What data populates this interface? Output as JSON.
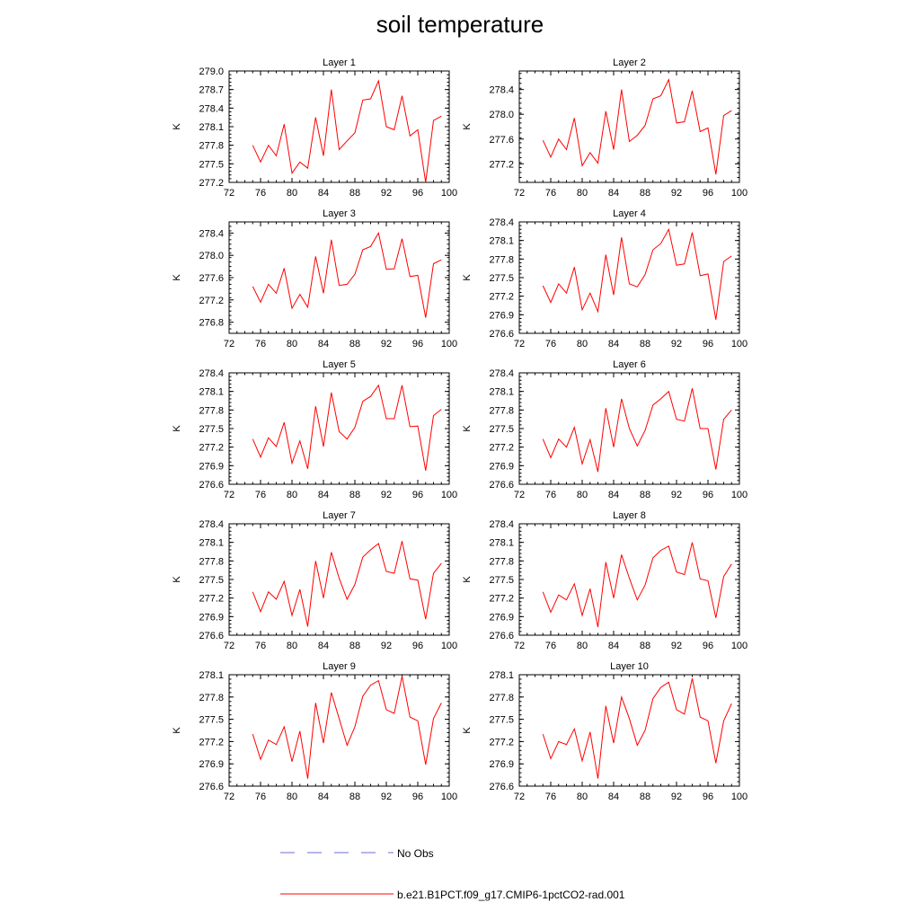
{
  "title": "soil temperature",
  "legend": [
    {
      "label": "No Obs",
      "color": "#6b6bd6",
      "style": "dashed"
    },
    {
      "label": "b.e21.B1PCT.f09_g17.CMIP6-1pctCO2-rad.001",
      "color": "#ff0000",
      "style": "solid"
    }
  ],
  "chart_data": [
    {
      "type": "line",
      "title": "Layer 1",
      "ylabel": "K",
      "xlim": [
        72,
        100
      ],
      "ylim": [
        277.2,
        279.0
      ],
      "xticks": [
        "72",
        "76",
        "80",
        "84",
        "88",
        "92",
        "96",
        "100"
      ],
      "yticks": [
        "277.2",
        "277.5",
        "277.8",
        "278.1",
        "278.4",
        "278.7",
        "279.0"
      ],
      "x": [
        75,
        76,
        77,
        78,
        79,
        80,
        81,
        82,
        83,
        84,
        85,
        86,
        87,
        88,
        89,
        90,
        91,
        92,
        93,
        94,
        95,
        96,
        97,
        98,
        99
      ],
      "series": [
        {
          "name": "b.e21.B1PCT.f09_g17.CMIP6-1pctCO2-rad.001",
          "color": "#ff0000",
          "values": [
            277.8,
            277.53,
            277.8,
            277.63,
            278.14,
            277.35,
            277.53,
            277.43,
            278.25,
            277.63,
            278.7,
            277.73,
            277.87,
            278.0,
            278.53,
            278.55,
            278.84,
            278.1,
            278.05,
            278.6,
            277.95,
            278.05,
            277.2,
            278.2,
            278.27
          ]
        }
      ]
    },
    {
      "type": "line",
      "title": "Layer 2",
      "ylabel": "K",
      "xlim": [
        72,
        100
      ],
      "ylim": [
        276.9,
        278.7
      ],
      "xticks": [
        "72",
        "76",
        "80",
        "84",
        "88",
        "92",
        "96",
        "100"
      ],
      "yticks": [
        "277.2",
        "277.6",
        "278.0",
        "278.4"
      ],
      "x": [
        75,
        76,
        77,
        78,
        79,
        80,
        81,
        82,
        83,
        84,
        85,
        86,
        87,
        88,
        89,
        90,
        91,
        92,
        93,
        94,
        95,
        96,
        97,
        98,
        99
      ],
      "series": [
        {
          "name": "b.e21.B1PCT.f09_g17.CMIP6-1pctCO2-rad.001",
          "color": "#ff0000",
          "values": [
            277.58,
            277.31,
            277.6,
            277.43,
            277.94,
            277.17,
            277.38,
            277.21,
            278.05,
            277.43,
            278.4,
            277.56,
            277.66,
            277.82,
            278.25,
            278.3,
            278.56,
            277.86,
            277.88,
            278.38,
            277.72,
            277.78,
            277.03,
            277.98,
            278.06
          ]
        }
      ]
    },
    {
      "type": "line",
      "title": "Layer 3",
      "ylabel": "K",
      "xlim": [
        72,
        100
      ],
      "ylim": [
        276.6,
        278.6
      ],
      "xticks": [
        "72",
        "76",
        "80",
        "84",
        "88",
        "92",
        "96",
        "100"
      ],
      "yticks": [
        "276.8",
        "277.2",
        "277.6",
        "278.0",
        "278.4"
      ],
      "x": [
        75,
        76,
        77,
        78,
        79,
        80,
        81,
        82,
        83,
        84,
        85,
        86,
        87,
        88,
        89,
        90,
        91,
        92,
        93,
        94,
        95,
        96,
        97,
        98,
        99
      ],
      "series": [
        {
          "name": "b.e21.B1PCT.f09_g17.CMIP6-1pctCO2-rad.001",
          "color": "#ff0000",
          "values": [
            277.44,
            277.16,
            277.48,
            277.32,
            277.77,
            277.05,
            277.3,
            277.07,
            277.98,
            277.32,
            278.28,
            277.46,
            277.48,
            277.66,
            278.1,
            278.16,
            278.4,
            277.75,
            277.76,
            278.3,
            277.62,
            277.64,
            276.88,
            277.85,
            277.92
          ]
        }
      ]
    },
    {
      "type": "line",
      "title": "Layer 4",
      "ylabel": "K",
      "xlim": [
        72,
        100
      ],
      "ylim": [
        276.6,
        278.4
      ],
      "xticks": [
        "72",
        "76",
        "80",
        "84",
        "88",
        "92",
        "96",
        "100"
      ],
      "yticks": [
        "276.6",
        "276.9",
        "277.2",
        "277.5",
        "277.8",
        "278.1",
        "278.4"
      ],
      "x": [
        75,
        76,
        77,
        78,
        79,
        80,
        81,
        82,
        83,
        84,
        85,
        86,
        87,
        88,
        89,
        90,
        91,
        92,
        93,
        94,
        95,
        96,
        97,
        98,
        99
      ],
      "series": [
        {
          "name": "b.e21.B1PCT.f09_g17.CMIP6-1pctCO2-rad.001",
          "color": "#ff0000",
          "values": [
            277.37,
            277.1,
            277.4,
            277.25,
            277.67,
            276.98,
            277.25,
            276.95,
            277.87,
            277.22,
            278.15,
            277.4,
            277.35,
            277.55,
            277.95,
            278.05,
            278.28,
            277.7,
            277.72,
            278.23,
            277.53,
            277.56,
            276.82,
            277.76,
            277.85
          ]
        }
      ]
    },
    {
      "type": "line",
      "title": "Layer 5",
      "ylabel": "K",
      "xlim": [
        72,
        100
      ],
      "ylim": [
        276.6,
        278.4
      ],
      "xticks": [
        "72",
        "76",
        "80",
        "84",
        "88",
        "92",
        "96",
        "100"
      ],
      "yticks": [
        "276.6",
        "276.9",
        "277.2",
        "277.5",
        "277.8",
        "278.1",
        "278.4"
      ],
      "x": [
        75,
        76,
        77,
        78,
        79,
        80,
        81,
        82,
        83,
        84,
        85,
        86,
        87,
        88,
        89,
        90,
        91,
        92,
        93,
        94,
        95,
        96,
        97,
        98,
        99
      ],
      "series": [
        {
          "name": "b.e21.B1PCT.f09_g17.CMIP6-1pctCO2-rad.001",
          "color": "#ff0000",
          "values": [
            277.33,
            277.04,
            277.35,
            277.21,
            277.6,
            276.94,
            277.3,
            276.85,
            277.86,
            277.21,
            278.08,
            277.45,
            277.33,
            277.52,
            277.94,
            278.02,
            278.2,
            277.66,
            277.66,
            278.2,
            277.53,
            277.54,
            276.82,
            277.71,
            277.81
          ]
        }
      ]
    },
    {
      "type": "line",
      "title": "Layer 6",
      "ylabel": "K",
      "xlim": [
        72,
        100
      ],
      "ylim": [
        276.6,
        278.4
      ],
      "xticks": [
        "72",
        "76",
        "80",
        "84",
        "88",
        "92",
        "96",
        "100"
      ],
      "yticks": [
        "276.6",
        "276.9",
        "277.2",
        "277.5",
        "277.8",
        "278.1",
        "278.4"
      ],
      "x": [
        75,
        76,
        77,
        78,
        79,
        80,
        81,
        82,
        83,
        84,
        85,
        86,
        87,
        88,
        89,
        90,
        91,
        92,
        93,
        94,
        95,
        96,
        97,
        98,
        99
      ],
      "series": [
        {
          "name": "b.e21.B1PCT.f09_g17.CMIP6-1pctCO2-rad.001",
          "color": "#ff0000",
          "values": [
            277.33,
            277.03,
            277.33,
            277.2,
            277.52,
            276.93,
            277.32,
            276.8,
            277.83,
            277.2,
            277.98,
            277.5,
            277.22,
            277.47,
            277.88,
            277.98,
            278.1,
            277.65,
            277.62,
            278.15,
            277.5,
            277.5,
            276.84,
            277.65,
            277.8
          ]
        }
      ]
    },
    {
      "type": "line",
      "title": "Layer 7",
      "ylabel": "K",
      "xlim": [
        72,
        100
      ],
      "ylim": [
        276.6,
        278.4
      ],
      "xticks": [
        "72",
        "76",
        "80",
        "84",
        "88",
        "92",
        "96",
        "100"
      ],
      "yticks": [
        "276.6",
        "276.9",
        "277.2",
        "277.5",
        "277.8",
        "278.1",
        "278.4"
      ],
      "x": [
        75,
        76,
        77,
        78,
        79,
        80,
        81,
        82,
        83,
        84,
        85,
        86,
        87,
        88,
        89,
        90,
        91,
        92,
        93,
        94,
        95,
        96,
        97,
        98,
        99
      ],
      "series": [
        {
          "name": "b.e21.B1PCT.f09_g17.CMIP6-1pctCO2-rad.001",
          "color": "#ff0000",
          "values": [
            277.3,
            276.98,
            277.3,
            277.18,
            277.47,
            276.92,
            277.34,
            276.74,
            277.8,
            277.2,
            277.94,
            277.52,
            277.18,
            277.42,
            277.86,
            277.98,
            278.08,
            277.63,
            277.6,
            278.12,
            277.51,
            277.49,
            276.86,
            277.6,
            277.76
          ]
        }
      ]
    },
    {
      "type": "line",
      "title": "Layer 8",
      "ylabel": "K",
      "xlim": [
        72,
        100
      ],
      "ylim": [
        276.6,
        278.4
      ],
      "xticks": [
        "72",
        "76",
        "80",
        "84",
        "88",
        "92",
        "96",
        "100"
      ],
      "yticks": [
        "276.6",
        "276.9",
        "277.2",
        "277.5",
        "277.8",
        "278.1",
        "278.4"
      ],
      "x": [
        75,
        76,
        77,
        78,
        79,
        80,
        81,
        82,
        83,
        84,
        85,
        86,
        87,
        88,
        89,
        90,
        91,
        92,
        93,
        94,
        95,
        96,
        97,
        98,
        99
      ],
      "series": [
        {
          "name": "b.e21.B1PCT.f09_g17.CMIP6-1pctCO2-rad.001",
          "color": "#ff0000",
          "values": [
            277.3,
            276.97,
            277.25,
            277.17,
            277.43,
            276.92,
            277.35,
            276.73,
            277.78,
            277.2,
            277.9,
            277.52,
            277.17,
            277.41,
            277.85,
            277.97,
            278.04,
            277.62,
            277.58,
            278.1,
            277.51,
            277.48,
            276.88,
            277.55,
            277.75
          ]
        }
      ]
    },
    {
      "type": "line",
      "title": "Layer 9",
      "ylabel": "K",
      "xlim": [
        72,
        100
      ],
      "ylim": [
        276.6,
        278.1
      ],
      "xticks": [
        "72",
        "76",
        "80",
        "84",
        "88",
        "92",
        "96",
        "100"
      ],
      "yticks": [
        "276.6",
        "276.9",
        "277.2",
        "277.5",
        "277.8",
        "278.1"
      ],
      "x": [
        75,
        76,
        77,
        78,
        79,
        80,
        81,
        82,
        83,
        84,
        85,
        86,
        87,
        88,
        89,
        90,
        91,
        92,
        93,
        94,
        95,
        96,
        97,
        98,
        99
      ],
      "series": [
        {
          "name": "b.e21.B1PCT.f09_g17.CMIP6-1pctCO2-rad.001",
          "color": "#ff0000",
          "values": [
            277.3,
            276.96,
            277.22,
            277.16,
            277.4,
            276.93,
            277.34,
            276.7,
            277.72,
            277.18,
            277.86,
            277.51,
            277.15,
            277.4,
            277.81,
            277.96,
            278.02,
            277.63,
            277.58,
            278.08,
            277.53,
            277.48,
            276.89,
            277.51,
            277.72
          ]
        }
      ]
    },
    {
      "type": "line",
      "title": "Layer 10",
      "ylabel": "K",
      "xlim": [
        72,
        100
      ],
      "ylim": [
        276.6,
        278.1
      ],
      "xticks": [
        "72",
        "76",
        "80",
        "84",
        "88",
        "92",
        "96",
        "100"
      ],
      "yticks": [
        "276.6",
        "276.9",
        "277.2",
        "277.5",
        "277.8",
        "278.1"
      ],
      "x": [
        75,
        76,
        77,
        78,
        79,
        80,
        81,
        82,
        83,
        84,
        85,
        86,
        87,
        88,
        89,
        90,
        91,
        92,
        93,
        94,
        95,
        96,
        97,
        98,
        99
      ],
      "series": [
        {
          "name": "b.e21.B1PCT.f09_g17.CMIP6-1pctCO2-rad.001",
          "color": "#ff0000",
          "values": [
            277.3,
            276.97,
            277.2,
            277.16,
            277.37,
            276.94,
            277.33,
            276.7,
            277.68,
            277.18,
            277.8,
            277.51,
            277.15,
            277.35,
            277.78,
            277.93,
            278.0,
            277.63,
            277.57,
            278.05,
            277.53,
            277.48,
            276.91,
            277.48,
            277.71
          ]
        }
      ]
    }
  ]
}
